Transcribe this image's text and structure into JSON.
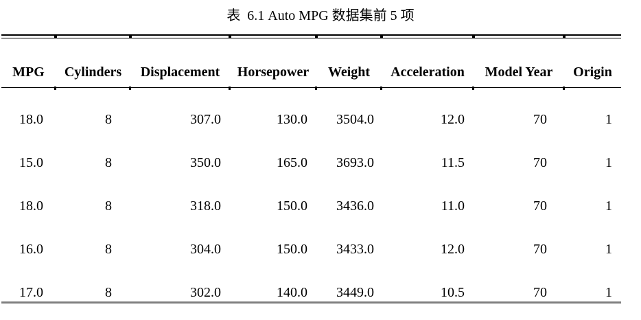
{
  "caption": "表  6.1 Auto MPG 数据集前 5 项",
  "table": {
    "columns": [
      "MPG",
      "Cylinders",
      "Displacement",
      "Horsepower",
      "Weight",
      "Acceleration",
      "Model Year",
      "Origin"
    ],
    "rows": [
      [
        "18.0",
        "8",
        "307.0",
        "130.0",
        "3504.0",
        "12.0",
        "70",
        "1"
      ],
      [
        "15.0",
        "8",
        "350.0",
        "165.0",
        "3693.0",
        "11.5",
        "70",
        "1"
      ],
      [
        "18.0",
        "8",
        "318.0",
        "150.0",
        "3436.0",
        "11.0",
        "70",
        "1"
      ],
      [
        "16.0",
        "8",
        "304.0",
        "150.0",
        "3433.0",
        "12.0",
        "70",
        "1"
      ],
      [
        "17.0",
        "8",
        "302.0",
        "140.0",
        "3449.0",
        "10.5",
        "70",
        "1"
      ]
    ]
  },
  "colors": {
    "text": "#000000",
    "rule": "#000000",
    "bottom_rule": "#7f7f7f",
    "background": "#ffffff"
  },
  "chart_data": {
    "type": "table",
    "title": "表 6.1 Auto MPG 数据集前 5 项",
    "columns": [
      "MPG",
      "Cylinders",
      "Displacement",
      "Horsepower",
      "Weight",
      "Acceleration",
      "Model Year",
      "Origin"
    ],
    "rows": [
      [
        18.0,
        8,
        307.0,
        130.0,
        3504.0,
        12.0,
        70,
        1
      ],
      [
        15.0,
        8,
        350.0,
        165.0,
        3693.0,
        11.5,
        70,
        1
      ],
      [
        18.0,
        8,
        318.0,
        150.0,
        3436.0,
        11.0,
        70,
        1
      ],
      [
        16.0,
        8,
        304.0,
        150.0,
        3433.0,
        12.0,
        70,
        1
      ],
      [
        17.0,
        8,
        302.0,
        140.0,
        3449.0,
        10.5,
        70,
        1
      ]
    ]
  }
}
